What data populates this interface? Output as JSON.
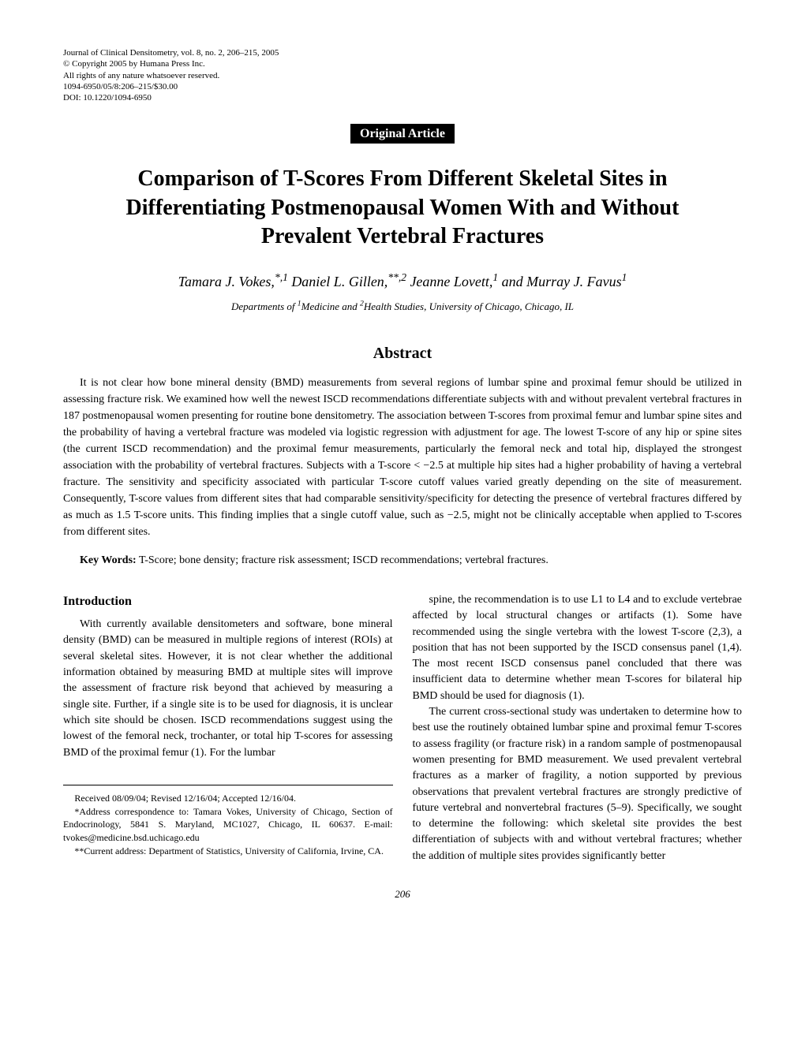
{
  "journal": {
    "line1": "Journal of Clinical Densitometry, vol. 8, no. 2, 206–215, 2005",
    "line2": "© Copyright 2005 by Humana Press Inc.",
    "line3": "All rights of any nature whatsoever reserved.",
    "line4": "1094-6950/05/8:206–215/$30.00",
    "line5": "DOI: 10.1220/1094-6950"
  },
  "badge": "Original Article",
  "title": "Comparison of T-Scores From Different Skeletal Sites in Differentiating Postmenopausal Women With and Without Prevalent Vertebral Fractures",
  "authors": "Tamara J. Vokes,*,1 Daniel L. Gillen,**,2 Jeanne Lovett,1 and Murray J. Favus1",
  "affiliations": "Departments of 1Medicine and 2Health Studies, University of Chicago, Chicago, IL",
  "abstract": {
    "heading": "Abstract",
    "text": "It is not clear how bone mineral density (BMD) measurements from several regions of lumbar spine and proximal femur should be utilized in assessing fracture risk. We examined how well the newest ISCD recommendations differentiate subjects with and without prevalent vertebral fractures in 187 postmenopausal women presenting for routine bone densitometry. The association between T-scores from proximal femur and lumbar spine sites and the probability of having a vertebral fracture was modeled via logistic regression with adjustment for age. The lowest T-score of any hip or spine sites (the current ISCD recommendation) and the proximal femur measurements, particularly the femoral neck and total hip, displayed the strongest association with the probability of vertebral fractures. Subjects with a T-score < −2.5 at multiple hip sites had a higher probability of having a vertebral fracture. The sensitivity and specificity associated with particular T-score cutoff values varied greatly depending on the site of measurement. Consequently, T-score values from different sites that had comparable sensitivity/specificity for detecting the presence of vertebral fractures differed by as much as 1.5 T-score units. This finding implies that a single cutoff value, such as −2.5, might not be clinically acceptable when applied to T-scores from different sites."
  },
  "keywords": {
    "label": "Key Words:",
    "text": " T-Score; bone density; fracture risk assessment; ISCD recommendations; vertebral fractures."
  },
  "introduction": {
    "heading": "Introduction",
    "col1_p1": "With currently available densitometers and software, bone mineral density (BMD) can be measured in multiple regions of interest (ROIs) at several skeletal sites. However, it is not clear whether the additional information obtained by measuring BMD at multiple sites will improve the assessment of fracture risk beyond that achieved by measuring a single site. Further, if a single site is to be used for diagnosis, it is unclear which site should be chosen. ISCD recommendations suggest using the lowest of the femoral neck, trochanter, or total hip T-scores for assessing BMD of the proximal femur (1). For the lumbar",
    "col2_p1": "spine, the recommendation is to use L1 to L4 and to exclude vertebrae affected by local structural changes or artifacts (1). Some have recommended using the single vertebra with the lowest T-score (2,3), a position that has not been supported by the ISCD consensus panel (1,4). The most recent ISCD consensus panel concluded that there was insufficient data to determine whether mean T-scores for bilateral hip BMD should be used for diagnosis (1).",
    "col2_p2": "The current cross-sectional study was undertaken to determine how to best use the routinely obtained lumbar spine and proximal femur T-scores to assess fragility (or fracture risk) in a random sample of postmenopausal women presenting for BMD measurement. We used prevalent vertebral fractures as a marker of fragility, a notion supported by previous observations that prevalent vertebral fractures are strongly predictive of future vertebral and nonvertebral fractures (5–9). Specifically, we sought to determine the following: which skeletal site provides the best differentiation of subjects with and without vertebral fractures; whether the addition of multiple sites provides significantly better"
  },
  "footnotes": {
    "line1": "Received 08/09/04; Revised 12/16/04; Accepted 12/16/04.",
    "line2": "*Address correspondence to: Tamara Vokes, University of Chicago, Section of Endocrinology, 5841 S. Maryland, MC1027, Chicago, IL 60637. E-mail: tvokes@medicine.bsd.uchicago.edu",
    "line3": "**Current address: Department of Statistics, University of California, Irvine, CA."
  },
  "page_number": "206"
}
